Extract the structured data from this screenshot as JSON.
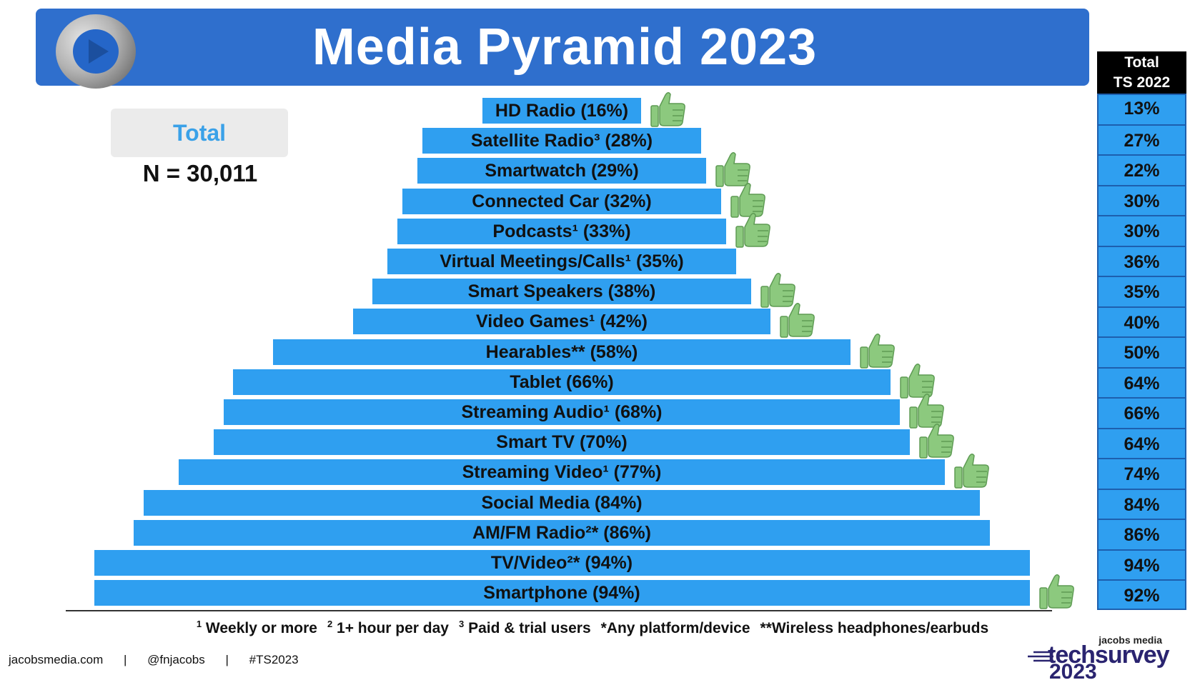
{
  "header": {
    "title": "Media Pyramid 2023"
  },
  "summary": {
    "total_label": "Total",
    "n_label": "N = 30,011"
  },
  "side_table": {
    "header": "Total\nTS 2022"
  },
  "chart_data": {
    "type": "bar",
    "orientation": "horizontal",
    "title": "Media Pyramid 2023",
    "categories": [
      {
        "label": "HD Radio (16%)",
        "value": 16,
        "ts2022": "13%",
        "thumb": true
      },
      {
        "label": "Satellite Radio³ (28%)",
        "value": 28,
        "ts2022": "27%",
        "thumb": false
      },
      {
        "label": "Smartwatch (29%)",
        "value": 29,
        "ts2022": "22%",
        "thumb": true
      },
      {
        "label": "Connected Car (32%)",
        "value": 32,
        "ts2022": "30%",
        "thumb": true
      },
      {
        "label": "Podcasts¹ (33%)",
        "value": 33,
        "ts2022": "30%",
        "thumb": true
      },
      {
        "label": "Virtual Meetings/Calls¹ (35%)",
        "value": 35,
        "ts2022": "36%",
        "thumb": false
      },
      {
        "label": "Smart Speakers (38%)",
        "value": 38,
        "ts2022": "35%",
        "thumb": true
      },
      {
        "label": "Video Games¹ (42%)",
        "value": 42,
        "ts2022": "40%",
        "thumb": true
      },
      {
        "label": "Hearables** (58%)",
        "value": 58,
        "ts2022": "50%",
        "thumb": true
      },
      {
        "label": "Tablet (66%)",
        "value": 66,
        "ts2022": "64%",
        "thumb": true
      },
      {
        "label": "Streaming Audio¹ (68%)",
        "value": 68,
        "ts2022": "66%",
        "thumb": true
      },
      {
        "label": "Smart TV (70%)",
        "value": 70,
        "ts2022": "64%",
        "thumb": true
      },
      {
        "label": "Streaming Video¹ (77%)",
        "value": 77,
        "ts2022": "74%",
        "thumb": true
      },
      {
        "label": "Social Media (84%)",
        "value": 84,
        "ts2022": "84%",
        "thumb": false
      },
      {
        "label": "AM/FM Radio²* (86%)",
        "value": 86,
        "ts2022": "86%",
        "thumb": false
      },
      {
        "label": "TV/Video²* (94%)",
        "value": 94,
        "ts2022": "94%",
        "thumb": false
      },
      {
        "label": "Smartphone (94%)",
        "value": 94,
        "ts2022": "92%",
        "thumb": true
      }
    ],
    "colors": {
      "bar": "#2f9ff0",
      "thumb": "#8cc97e",
      "banner": "#2f6fcd"
    }
  },
  "footnote": {
    "items": [
      {
        "sup": "1",
        "text": "Weekly or more"
      },
      {
        "sup": "2",
        "text": "1+ hour per day"
      },
      {
        "sup": "3",
        "text": "Paid & trial users"
      },
      {
        "sup": "",
        "text": "*Any platform/device"
      },
      {
        "sup": "",
        "text": "**Wireless headphones/earbuds"
      }
    ]
  },
  "credits": {
    "site": "jacobsmedia.com",
    "handle": "@fnjacobs",
    "hashtag": "#TS2023",
    "sep": "|"
  },
  "brand": {
    "small": "jacobs media",
    "main": "techsurvey",
    "year": "2023"
  },
  "icons": {
    "thumb": "thumbs-up-icon",
    "logo": "play-logo-icon"
  }
}
